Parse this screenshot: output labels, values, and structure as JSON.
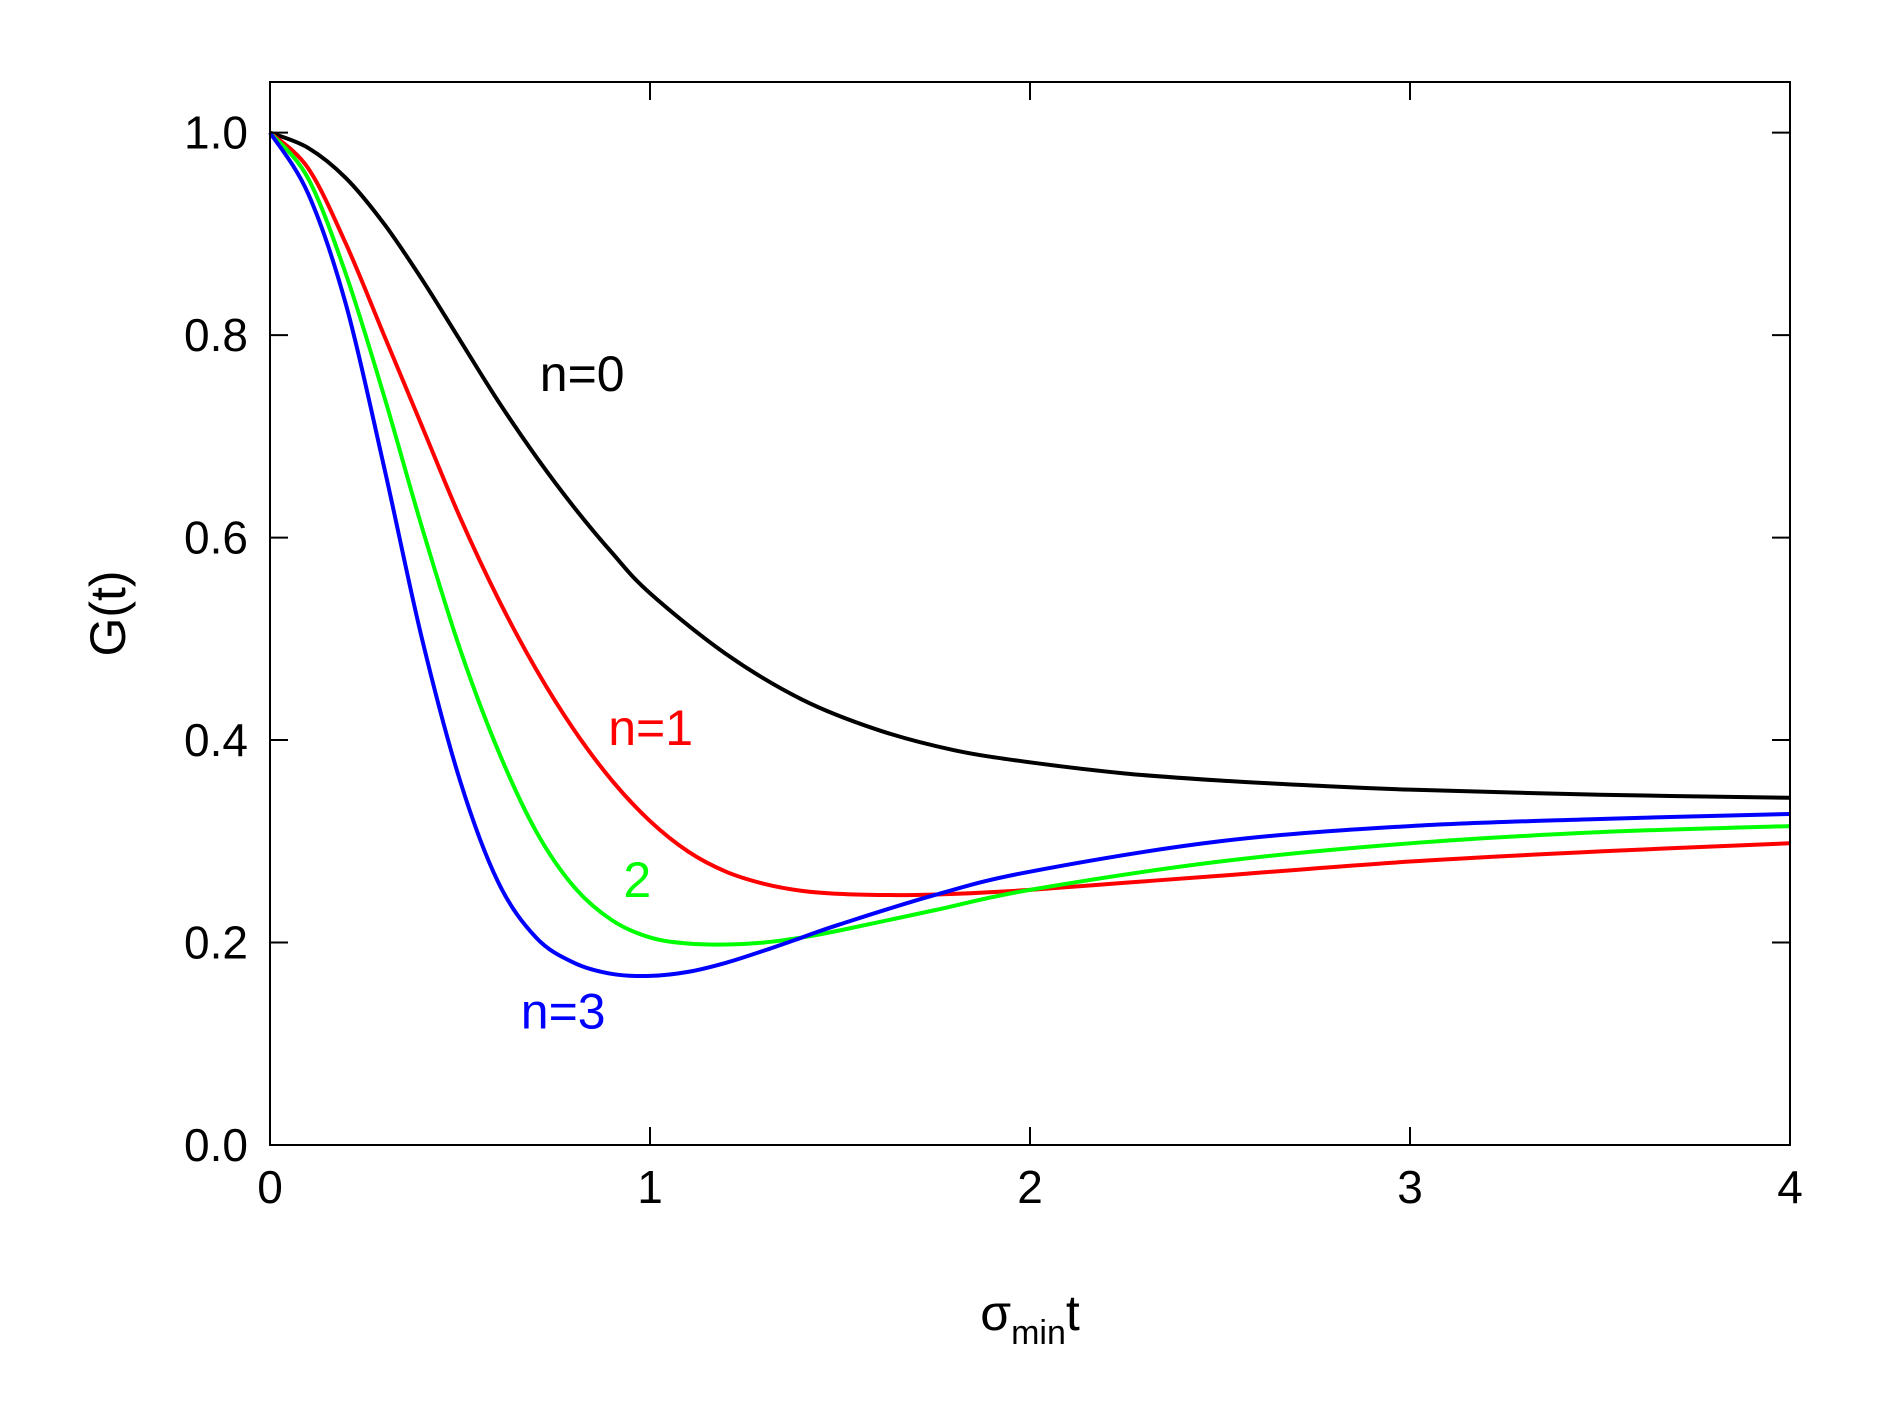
{
  "chart_data": {
    "type": "line",
    "xlabel": {
      "main": "σ",
      "sub": "min",
      "tail": "t"
    },
    "ylabel": "G(t)",
    "xlim": [
      0,
      4
    ],
    "ylim": [
      0,
      1.05
    ],
    "xticks": [
      0,
      1,
      2,
      3,
      4
    ],
    "xtick_labels": [
      "0",
      "1",
      "2",
      "3",
      "4"
    ],
    "yticks": [
      0,
      0.2,
      0.4,
      0.6,
      0.8,
      1.0
    ],
    "ytick_labels": [
      "0.0",
      "0.2",
      "0.4",
      "0.6",
      "0.8",
      "1.0"
    ],
    "grid": false,
    "series": [
      {
        "name": "n=0",
        "color": "#000000",
        "x": [
          0,
          0.1,
          0.2,
          0.3,
          0.4,
          0.5,
          0.6,
          0.7,
          0.8,
          0.9,
          1.0,
          1.2,
          1.4,
          1.6,
          1.8,
          2.0,
          2.25,
          2.5,
          2.75,
          3.0,
          3.5,
          4.0
        ],
        "y": [
          1.0,
          0.985,
          0.955,
          0.91,
          0.855,
          0.795,
          0.735,
          0.68,
          0.63,
          0.585,
          0.545,
          0.485,
          0.44,
          0.41,
          0.39,
          0.378,
          0.367,
          0.36,
          0.355,
          0.351,
          0.346,
          0.343
        ]
      },
      {
        "name": "n=1",
        "color": "#ff0000",
        "x": [
          0,
          0.1,
          0.2,
          0.3,
          0.4,
          0.5,
          0.6,
          0.7,
          0.8,
          0.9,
          1.0,
          1.1,
          1.2,
          1.3,
          1.4,
          1.5,
          1.6,
          1.7,
          1.8,
          2.0,
          2.25,
          2.5,
          3.0,
          3.5,
          4.0
        ],
        "y": [
          1.0,
          0.965,
          0.89,
          0.8,
          0.71,
          0.62,
          0.54,
          0.47,
          0.41,
          0.36,
          0.32,
          0.29,
          0.27,
          0.258,
          0.251,
          0.248,
          0.247,
          0.247,
          0.248,
          0.252,
          0.259,
          0.266,
          0.28,
          0.29,
          0.298
        ]
      },
      {
        "name": "2",
        "color": "#00ff00",
        "x": [
          0,
          0.1,
          0.2,
          0.3,
          0.4,
          0.5,
          0.6,
          0.7,
          0.8,
          0.9,
          1.0,
          1.1,
          1.2,
          1.3,
          1.4,
          1.5,
          1.75,
          2.0,
          2.5,
          3.0,
          3.5,
          4.0
        ],
        "y": [
          1.0,
          0.955,
          0.86,
          0.74,
          0.61,
          0.49,
          0.39,
          0.31,
          0.255,
          0.222,
          0.205,
          0.199,
          0.198,
          0.2,
          0.205,
          0.212,
          0.232,
          0.252,
          0.28,
          0.298,
          0.309,
          0.315
        ]
      },
      {
        "name": "n=3",
        "color": "#0000ff",
        "x": [
          0,
          0.1,
          0.2,
          0.3,
          0.4,
          0.5,
          0.6,
          0.7,
          0.8,
          0.9,
          1.0,
          1.1,
          1.2,
          1.3,
          1.4,
          1.5,
          1.75,
          2.0,
          2.5,
          3.0,
          3.5,
          4.0
        ],
        "y": [
          1.0,
          0.94,
          0.83,
          0.67,
          0.5,
          0.36,
          0.26,
          0.205,
          0.18,
          0.169,
          0.167,
          0.171,
          0.18,
          0.192,
          0.205,
          0.218,
          0.247,
          0.27,
          0.3,
          0.315,
          0.322,
          0.327
        ]
      }
    ],
    "annotations": [
      {
        "text": "n=0",
        "x": 0.71,
        "y": 0.745,
        "color": "#000000"
      },
      {
        "text": "n=1",
        "x": 0.89,
        "y": 0.395,
        "color": "#ff0000"
      },
      {
        "text": "2",
        "x": 0.93,
        "y": 0.245,
        "color": "#00ff00"
      },
      {
        "text": "n=3",
        "x": 0.66,
        "y": 0.115,
        "color": "#0000ff"
      }
    ]
  }
}
